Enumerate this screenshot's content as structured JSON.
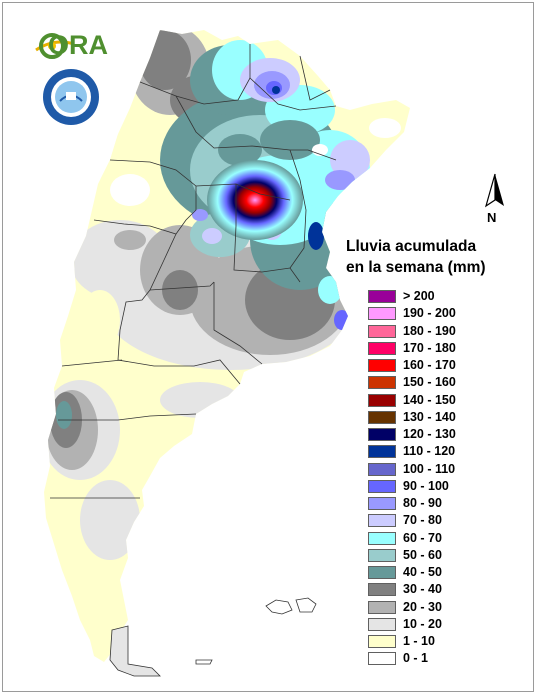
{
  "map": {
    "legend_title": [
      "Lluvia acumulada",
      "en la semana (mm)"
    ],
    "north_label": "N",
    "logo_text": "ORA",
    "legend": [
      {
        "label": "> 200",
        "color": "#990099"
      },
      {
        "label": "190 - 200",
        "color": "#ff99ff"
      },
      {
        "label": "180 - 190",
        "color": "#ff6699"
      },
      {
        "label": "170 - 180",
        "color": "#ff0066"
      },
      {
        "label": "160 - 170",
        "color": "#ff0000"
      },
      {
        "label": "150 - 160",
        "color": "#cc3300"
      },
      {
        "label": "140 - 150",
        "color": "#990000"
      },
      {
        "label": "130 - 140",
        "color": "#663300"
      },
      {
        "label": "120 - 130",
        "color": "#000066"
      },
      {
        "label": "110 - 120",
        "color": "#003399"
      },
      {
        "label": "100 - 110",
        "color": "#6666cc"
      },
      {
        "label": "90 - 100",
        "color": "#6666ff"
      },
      {
        "label": "80 - 90",
        "color": "#9999ff"
      },
      {
        "label": "70 - 80",
        "color": "#ccccff"
      },
      {
        "label": "60 - 70",
        "color": "#99ffff"
      },
      {
        "label": "50 - 60",
        "color": "#99cccc"
      },
      {
        "label": "40 - 50",
        "color": "#669999"
      },
      {
        "label": "30 - 40",
        "color": "#808080"
      },
      {
        "label": "20 - 30",
        "color": "#b2b2b2"
      },
      {
        "label": "10 - 20",
        "color": "#e5e5e5"
      },
      {
        "label": "1 - 10",
        "color": "#ffffcc"
      },
      {
        "label": "0 - 1",
        "color": "#ffffff"
      }
    ]
  }
}
